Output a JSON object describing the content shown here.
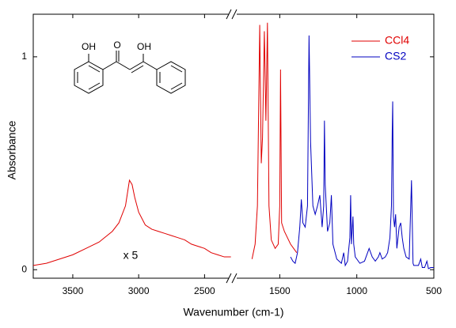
{
  "chart_data": {
    "type": "line",
    "xlabel": "Wavenumber (cm-1)",
    "ylabel": "Absorbance",
    "annotation": "x 5",
    "structure_labels": [
      "OH",
      "O",
      "OH"
    ],
    "xlim": [
      3800,
      500
    ],
    "xbreak": [
      2280,
      1800
    ],
    "xticks": [
      3500,
      3000,
      2500,
      1500,
      1000,
      500
    ],
    "ylim": [
      -0.04,
      1.2
    ],
    "yticks": [
      0,
      1
    ],
    "legend": "upper right",
    "series": [
      {
        "name": "CCl4",
        "color": "#e00000",
        "x": [
          3800,
          3700,
          3600,
          3500,
          3400,
          3300,
          3200,
          3150,
          3100,
          3080,
          3070,
          3060,
          3050,
          3030,
          3000,
          2950,
          2900,
          2850,
          2800,
          2750,
          2700,
          2650,
          2600,
          2550,
          2500,
          2450,
          2400,
          2350,
          2300,
          2000,
          1680,
          1660,
          1645,
          1630,
          1620,
          1612,
          1600,
          1590,
          1580,
          1570,
          1555,
          1530,
          1510,
          1500,
          1495,
          1488,
          1470,
          1450,
          1430,
          1410,
          1390
        ],
        "values": [
          0.02,
          0.03,
          0.05,
          0.07,
          0.1,
          0.13,
          0.18,
          0.22,
          0.3,
          0.38,
          0.42,
          0.41,
          0.4,
          0.34,
          0.27,
          0.21,
          0.19,
          0.18,
          0.17,
          0.16,
          0.15,
          0.14,
          0.12,
          0.11,
          0.1,
          0.08,
          0.07,
          0.06,
          0.06,
          null,
          0.05,
          0.12,
          0.3,
          1.15,
          0.5,
          0.62,
          1.12,
          0.7,
          1.16,
          0.3,
          0.14,
          0.1,
          0.12,
          0.3,
          0.94,
          0.22,
          0.18,
          0.15,
          0.12,
          0.1,
          0.08
        ]
      },
      {
        "name": "CS2",
        "color": "#0000c0",
        "x": [
          1430,
          1415,
          1400,
          1385,
          1370,
          1360,
          1350,
          1335,
          1320,
          1310,
          1300,
          1285,
          1270,
          1255,
          1240,
          1225,
          1215,
          1210,
          1205,
          1190,
          1175,
          1165,
          1155,
          1130,
          1100,
          1085,
          1075,
          1060,
          1045,
          1040,
          1035,
          1025,
          1020,
          1010,
          1000,
          980,
          950,
          920,
          900,
          880,
          860,
          850,
          835,
          815,
          800,
          785,
          775,
          770,
          767,
          762,
          755,
          748,
          740,
          725,
          715,
          705,
          695,
          680,
          660,
          645,
          635,
          630,
          620,
          600,
          585,
          575,
          560,
          545,
          535,
          520,
          500
        ],
        "values": [
          0.06,
          0.04,
          0.03,
          0.08,
          0.2,
          0.33,
          0.22,
          0.2,
          0.3,
          1.1,
          0.6,
          0.3,
          0.26,
          0.3,
          0.35,
          0.2,
          0.3,
          0.7,
          0.4,
          0.18,
          0.22,
          0.35,
          0.12,
          0.05,
          0.03,
          0.08,
          0.02,
          0.04,
          0.15,
          0.35,
          0.12,
          0.25,
          0.12,
          0.06,
          0.05,
          0.03,
          0.04,
          0.1,
          0.06,
          0.04,
          0.06,
          0.08,
          0.05,
          0.06,
          0.08,
          0.15,
          0.3,
          0.65,
          0.79,
          0.25,
          0.2,
          0.26,
          0.1,
          0.2,
          0.22,
          0.15,
          0.1,
          0.06,
          0.05,
          0.42,
          0.03,
          0.02,
          0.02,
          0.02,
          0.05,
          0.01,
          0.01,
          0.04,
          0.005,
          0.01,
          0.01
        ]
      }
    ]
  }
}
